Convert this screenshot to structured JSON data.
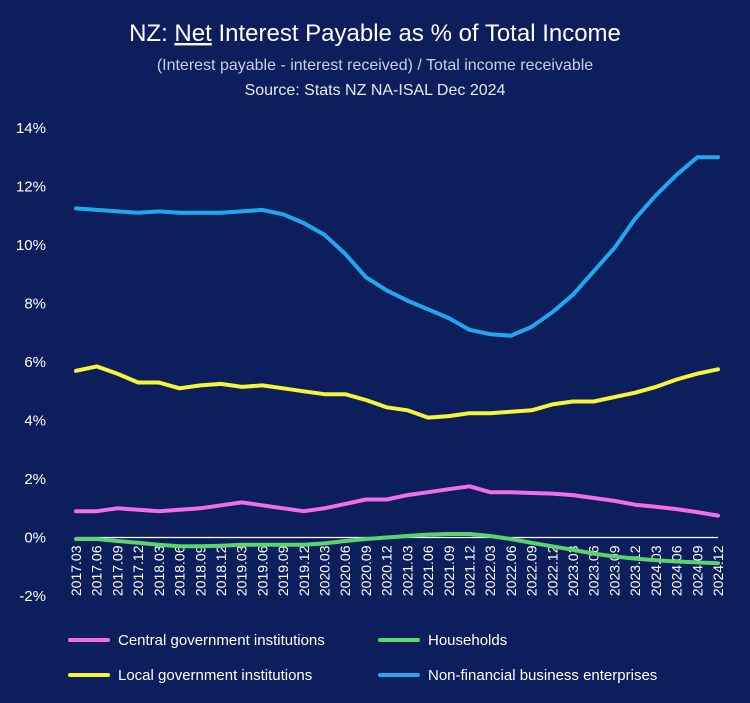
{
  "title": {
    "prefix": "NZ: ",
    "underlined": "Net",
    "suffix": " Interest Payable as % of Total Income"
  },
  "subtitle": "(Interest payable - interest received) / Total income receivable",
  "source": "Source: Stats NZ NA-ISAL Dec 2024",
  "chart_data": {
    "type": "line",
    "title": "NZ: Net Interest Payable as % of Total Income",
    "subtitle": "(Interest payable - interest received) / Total income receivable",
    "ylim": [
      -2,
      14
    ],
    "y_ticks": [
      14,
      12,
      10,
      8,
      6,
      4,
      2,
      0,
      -2
    ],
    "y_tick_labels": [
      "14%",
      "12%",
      "10%",
      "8%",
      "6%",
      "4%",
      "2%",
      "0%",
      "-2%"
    ],
    "grid": false,
    "legend_position": "bottom",
    "x": [
      "2017.03",
      "2017.06",
      "2017.09",
      "2017.12",
      "2018.03",
      "2018.06",
      "2018.09",
      "2018.12",
      "2019.03",
      "2019.06",
      "2019.09",
      "2019.12",
      "2020.03",
      "2020.06",
      "2020.09",
      "2020.12",
      "2021.03",
      "2021.06",
      "2021.09",
      "2021.12",
      "2022.03",
      "2022.06",
      "2022.09",
      "2022.12",
      "2023.03",
      "2023.06",
      "2023.09",
      "2023.12",
      "2024.03",
      "2024.06",
      "2024.09",
      "2024.12"
    ],
    "series": [
      {
        "name": "Central government institutions",
        "color": "#f06ee8",
        "values": [
          0.9,
          0.9,
          1.0,
          0.95,
          0.9,
          0.95,
          1.0,
          1.1,
          1.2,
          1.1,
          1.0,
          0.9,
          1.0,
          1.15,
          1.3,
          1.3,
          1.45,
          1.55,
          1.65,
          1.75,
          1.55,
          1.55,
          1.52,
          1.5,
          1.45,
          1.35,
          1.25,
          1.12,
          1.05,
          0.97,
          0.87,
          0.75
        ]
      },
      {
        "name": "Households",
        "color": "#5bd46b",
        "values": [
          -0.05,
          -0.05,
          -0.12,
          -0.18,
          -0.25,
          -0.3,
          -0.3,
          -0.28,
          -0.25,
          -0.25,
          -0.25,
          -0.25,
          -0.2,
          -0.12,
          -0.05,
          0.0,
          0.05,
          0.1,
          0.12,
          0.12,
          0.05,
          -0.05,
          -0.18,
          -0.3,
          -0.42,
          -0.55,
          -0.65,
          -0.72,
          -0.78,
          -0.82,
          -0.85,
          -0.88
        ]
      },
      {
        "name": "Local government institutions",
        "color": "#f5f53a",
        "values": [
          5.7,
          5.85,
          5.6,
          5.3,
          5.3,
          5.1,
          5.2,
          5.25,
          5.15,
          5.2,
          5.1,
          5.0,
          4.9,
          4.9,
          4.7,
          4.45,
          4.35,
          4.1,
          4.15,
          4.25,
          4.25,
          4.3,
          4.35,
          4.55,
          4.65,
          4.65,
          4.8,
          4.95,
          5.15,
          5.4,
          5.6,
          5.75
        ]
      },
      {
        "name": "Non-financial business enterprises",
        "color": "#21a7ef",
        "values": [
          11.25,
          11.2,
          11.15,
          11.1,
          11.15,
          11.1,
          11.1,
          11.1,
          11.15,
          11.2,
          11.05,
          10.75,
          10.35,
          9.7,
          8.9,
          8.45,
          8.1,
          7.8,
          7.5,
          7.1,
          6.95,
          6.9,
          7.2,
          7.7,
          8.3,
          9.1,
          9.9,
          10.9,
          11.7,
          12.4,
          13.0,
          13.0
        ]
      }
    ]
  }
}
